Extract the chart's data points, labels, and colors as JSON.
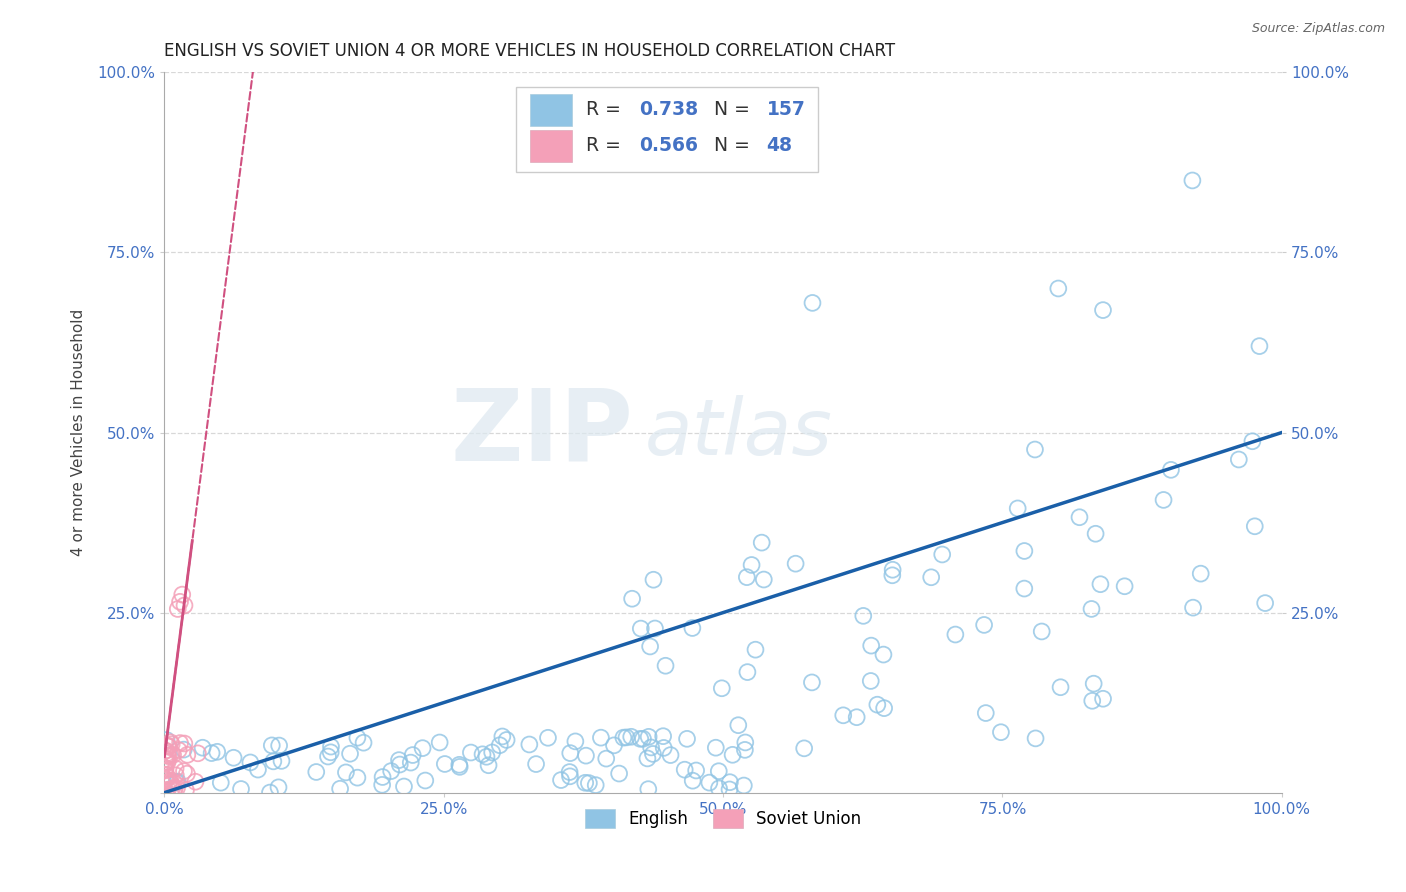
{
  "title": "ENGLISH VS SOVIET UNION 4 OR MORE VEHICLES IN HOUSEHOLD CORRELATION CHART",
  "source": "Source: ZipAtlas.com",
  "ylabel": "4 or more Vehicles in Household",
  "xlim": [
    0.0,
    1.0
  ],
  "ylim": [
    0.0,
    1.0
  ],
  "xticklabels": [
    "0.0%",
    "25.0%",
    "50.0%",
    "75.0%",
    "100.0%"
  ],
  "yticklabels": [
    "",
    "25.0%",
    "50.0%",
    "75.0%",
    "100.0%"
  ],
  "right_yticklabels": [
    "25.0%",
    "50.0%",
    "75.0%",
    "100.0%"
  ],
  "english_R": 0.738,
  "english_N": 157,
  "soviet_R": 0.566,
  "soviet_N": 48,
  "english_color": "#90c4e4",
  "soviet_color": "#f4a0b8",
  "english_line_color": "#1a5fa8",
  "soviet_line_color": "#d05080",
  "watermark_zip": "ZIP",
  "watermark_atlas": "atlas",
  "background_color": "#ffffff",
  "title_fontsize": 12,
  "axis_label_fontsize": 11,
  "tick_color": "#4472c4",
  "tick_fontsize": 11,
  "grid_color": "#d8d8d8",
  "source_fontsize": 9
}
